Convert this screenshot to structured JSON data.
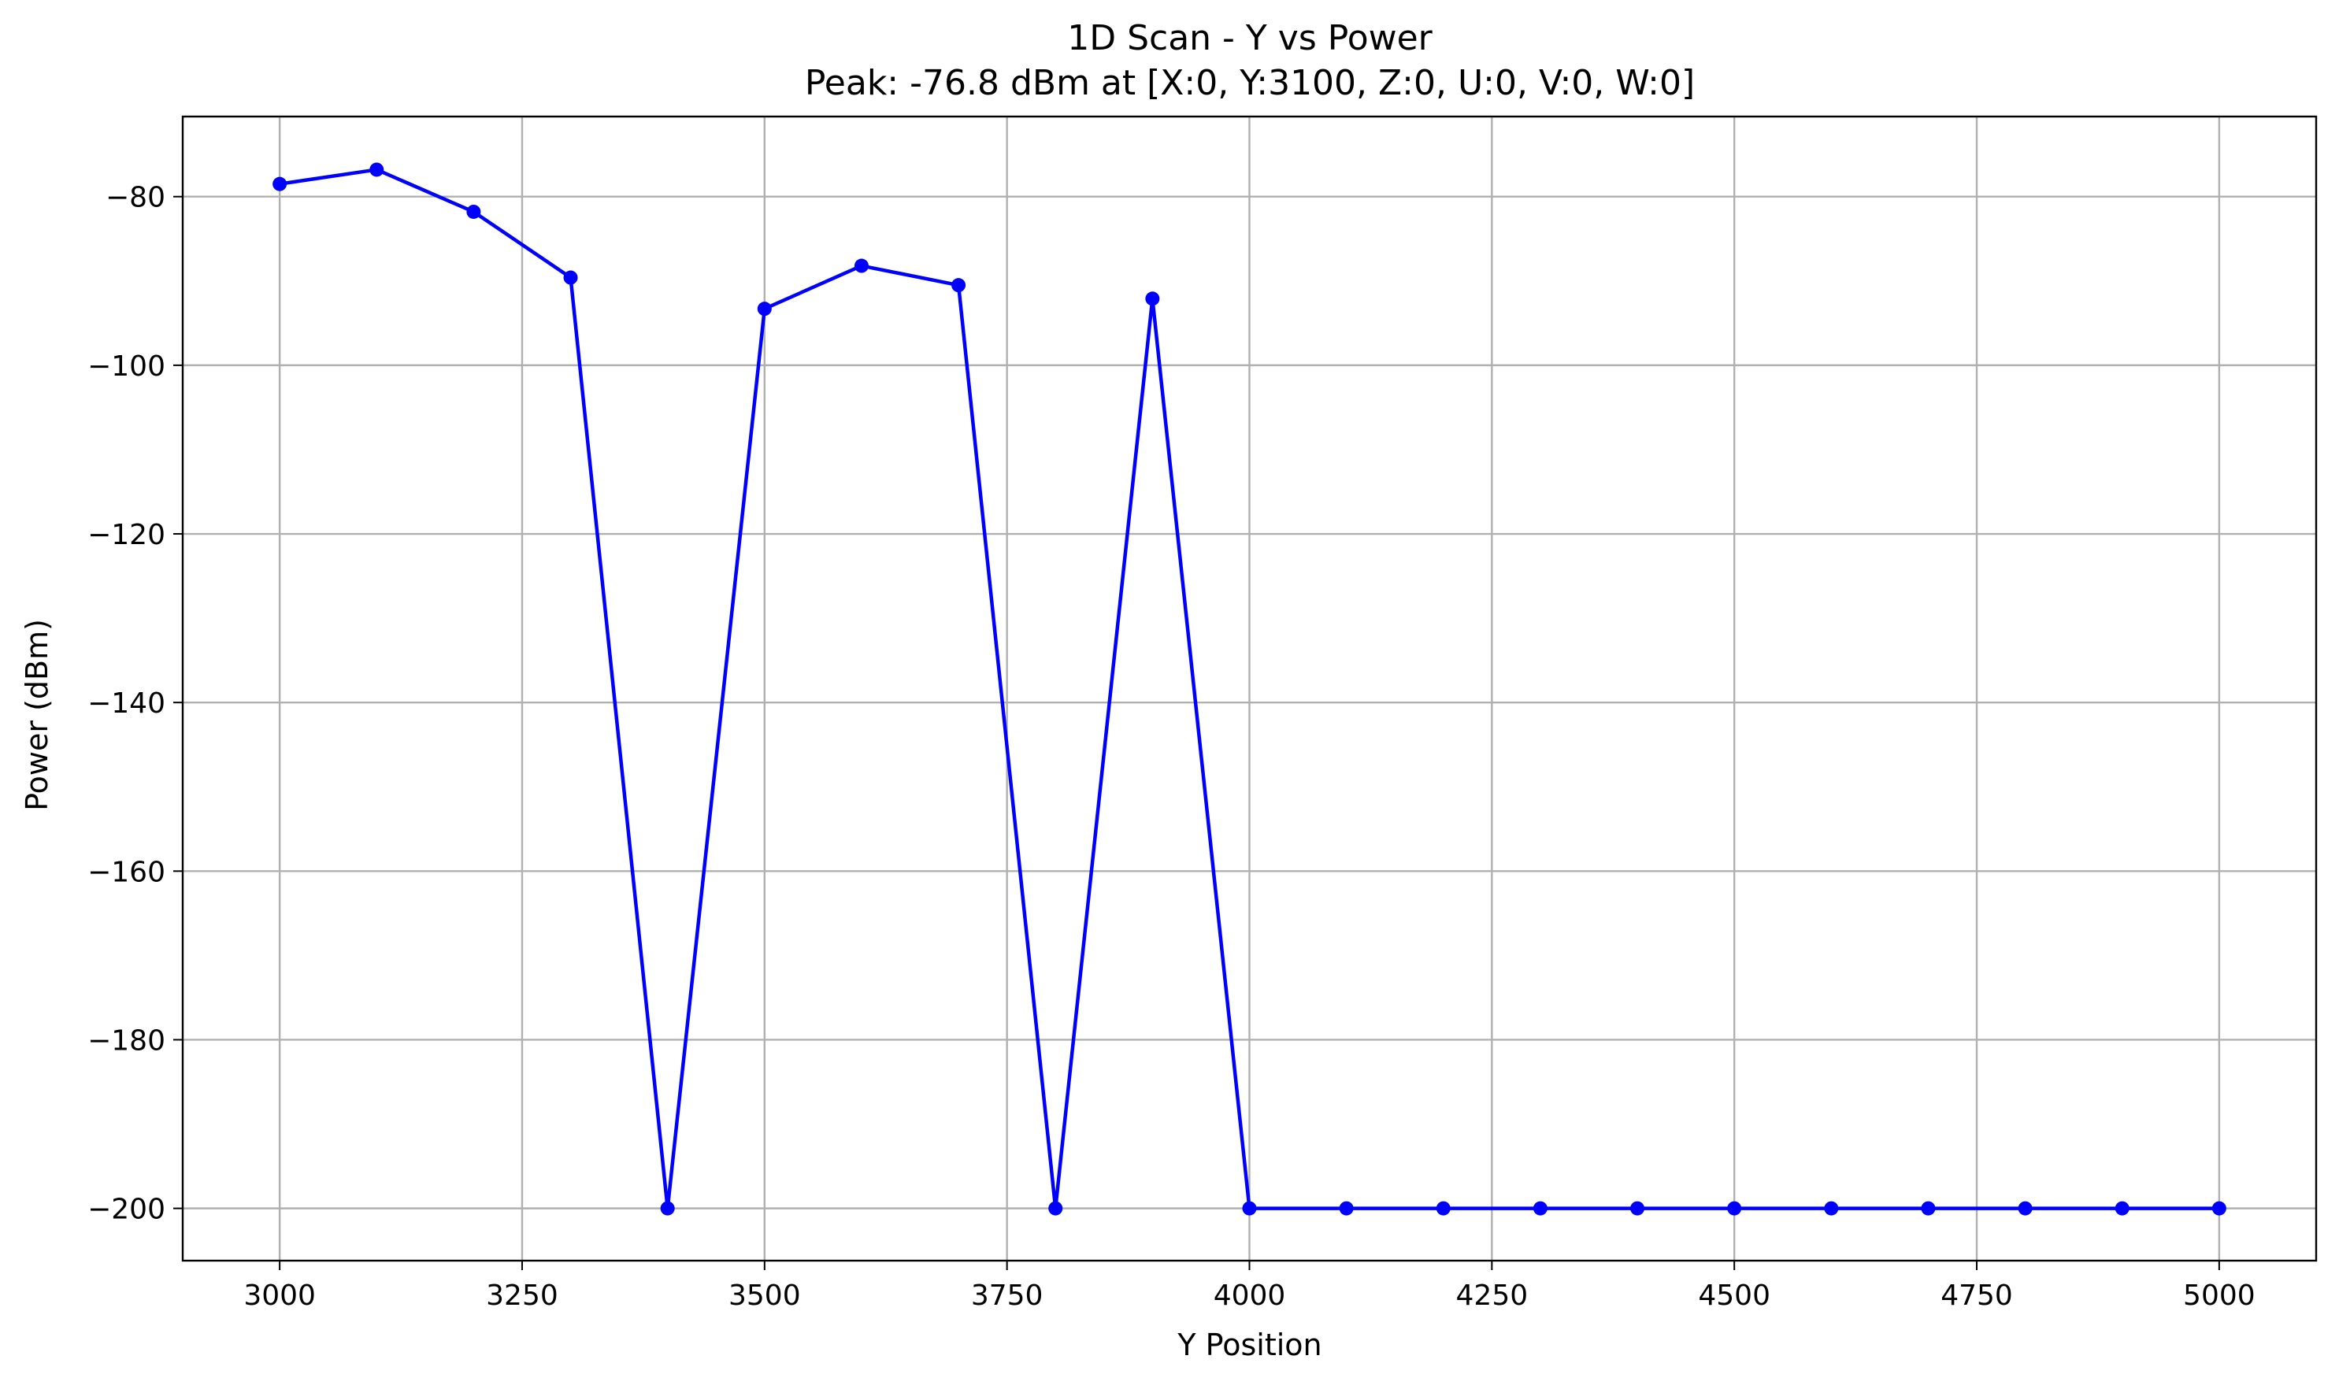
{
  "chart_data": {
    "type": "line",
    "title": "1D Scan - Y vs Power",
    "subtitle": "Peak: -76.8 dBm at [X:0, Y:3100, Z:0, U:0, V:0, W:0]",
    "xlabel": "Y Position",
    "ylabel": "Power (dBm)",
    "xlim": [
      2900,
      5100
    ],
    "ylim": [
      -206.2,
      -70.5
    ],
    "xticks": [
      3000,
      3250,
      3500,
      3750,
      4000,
      4250,
      4500,
      4750,
      5000
    ],
    "yticks": [
      -80,
      -100,
      -120,
      -140,
      -160,
      -180,
      -200
    ],
    "grid": true,
    "line_color": "#0000ff",
    "grid_color": "#b0b0b0",
    "series": [
      {
        "x": [
          3000,
          3100,
          3200,
          3300,
          3400,
          3500,
          3600,
          3700,
          3800,
          3900,
          4000,
          4100,
          4200,
          4300,
          4400,
          4500,
          4600,
          4700,
          4800,
          4900,
          5000
        ],
        "values": [
          -78.5,
          -76.8,
          -81.8,
          -89.6,
          -200,
          -93.3,
          -88.2,
          -90.5,
          -200,
          -92.1,
          -200,
          -200,
          -200,
          -200,
          -200,
          -200,
          -200,
          -200,
          -200,
          -200,
          -200
        ]
      }
    ]
  }
}
